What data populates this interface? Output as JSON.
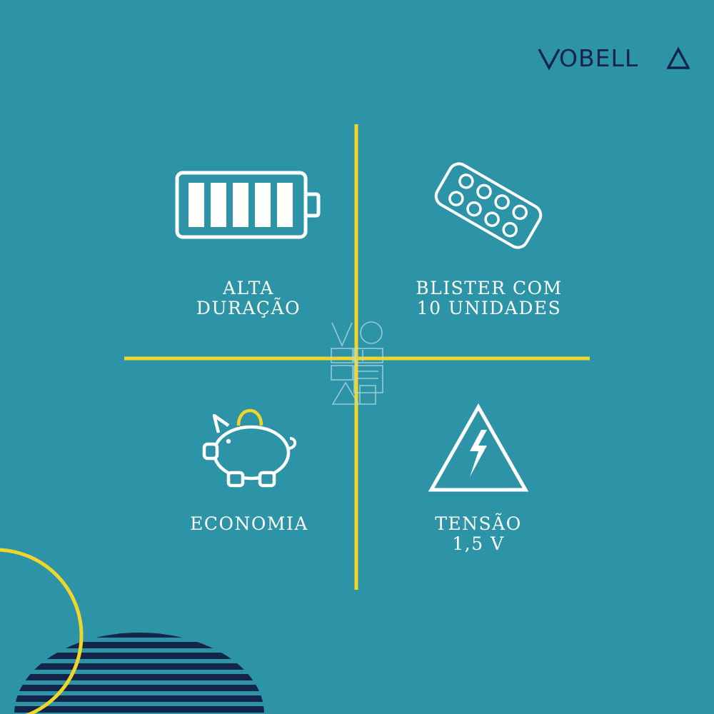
{
  "brand": {
    "logo_text": "OBELL"
  },
  "colors": {
    "background": "#2d93a7",
    "accent_yellow": "#f0d62b",
    "navy": "#13264a",
    "white": "#ffffff"
  },
  "features": [
    {
      "icon": "battery-icon",
      "lines": [
        "ALTA",
        "DURAÇÃO"
      ]
    },
    {
      "icon": "blister-pack-icon",
      "lines": [
        "BLISTER COM",
        "10 UNIDADES"
      ]
    },
    {
      "icon": "piggy-bank-icon",
      "lines": [
        "ECONOMIA"
      ]
    },
    {
      "icon": "high-voltage-warning-icon",
      "lines": [
        "TENSÃO",
        "1,5 V"
      ]
    }
  ]
}
